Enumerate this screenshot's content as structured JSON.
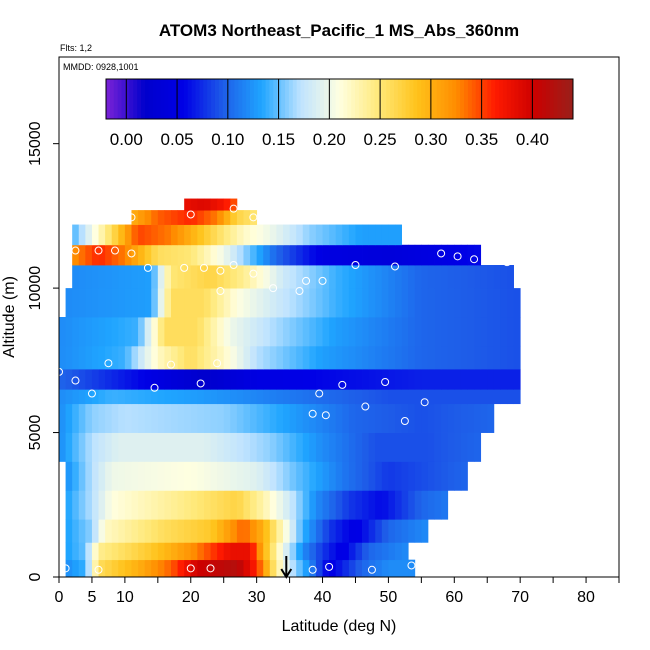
{
  "chart_data": {
    "type": "heatmap",
    "title": "ATOM3 Northeast_Pacific_1 MS_Abs_360nm",
    "flights_note": "Flts: 1,2",
    "date_note": "MMDD: 0928,1001",
    "xlabel": "Latitude (deg N)",
    "ylabel": "Altitude (m)",
    "xlim": [
      0,
      85
    ],
    "ylim": [
      0,
      18000
    ],
    "x_ticks": [
      0,
      5,
      10,
      20,
      30,
      40,
      50,
      60,
      70,
      80
    ],
    "x_tick_labels": [
      "0",
      "5",
      "10",
      "20",
      "30",
      "40",
      "50",
      "60",
      "70",
      "80"
    ],
    "y_ticks": [
      0,
      5000,
      10000,
      15000
    ],
    "y_tick_labels": [
      "0",
      "5000",
      "10000",
      "15000"
    ],
    "colorbar": {
      "range": [
        -0.02,
        0.44
      ],
      "ticks": [
        0.0,
        0.05,
        0.1,
        0.15,
        0.2,
        0.25,
        0.3,
        0.35,
        0.4
      ],
      "tick_labels": [
        "0.00",
        "0.05",
        "0.10",
        "0.15",
        "0.20",
        "0.25",
        "0.30",
        "0.35",
        "0.40"
      ],
      "colors": [
        "#7b22d6",
        "#0000cc",
        "#0000e6",
        "#1e5ce8",
        "#1fa5ff",
        "#bfe3ff",
        "#ffffe0",
        "#ffe97a",
        "#ffc21a",
        "#ff8c00",
        "#ff1a00",
        "#cc0000",
        "#99201a"
      ]
    },
    "grid": false,
    "marker": {
      "x": 34.5,
      "note": "downward arrow at ~34.5 deg N"
    },
    "bands": [
      {
        "alt": [
          0,
          600
        ],
        "lat": [
          1,
          54
        ],
        "nodes": [
          [
            1,
            0.12
          ],
          [
            4,
            0.14
          ],
          [
            6,
            0.26
          ],
          [
            12,
            0.3
          ],
          [
            17,
            0.34
          ],
          [
            21,
            0.4
          ],
          [
            27,
            0.42
          ],
          [
            30,
            0.36
          ],
          [
            33,
            0.24
          ],
          [
            35,
            0.18
          ],
          [
            38,
            0.12
          ],
          [
            41,
            0.05
          ],
          [
            46,
            0.1
          ],
          [
            50,
            0.12
          ],
          [
            54,
            0.12
          ]
        ]
      },
      {
        "alt": [
          600,
          1200
        ],
        "lat": [
          1,
          53
        ],
        "nodes": [
          [
            1,
            0.13
          ],
          [
            4,
            0.15
          ],
          [
            6,
            0.24
          ],
          [
            14,
            0.28
          ],
          [
            20,
            0.32
          ],
          [
            26,
            0.38
          ],
          [
            29,
            0.38
          ],
          [
            31,
            0.3
          ],
          [
            34,
            0.2
          ],
          [
            37,
            0.12
          ],
          [
            40,
            0.08
          ],
          [
            43,
            0.05
          ],
          [
            47,
            0.1
          ],
          [
            53,
            0.12
          ]
        ]
      },
      {
        "alt": [
          1200,
          2000
        ],
        "lat": [
          1,
          56
        ],
        "nodes": [
          [
            1,
            0.13
          ],
          [
            5,
            0.16
          ],
          [
            7,
            0.22
          ],
          [
            16,
            0.26
          ],
          [
            23,
            0.28
          ],
          [
            28,
            0.34
          ],
          [
            31,
            0.3
          ],
          [
            34,
            0.22
          ],
          [
            37,
            0.14
          ],
          [
            41,
            0.08
          ],
          [
            45,
            0.05
          ],
          [
            50,
            0.1
          ],
          [
            56,
            0.12
          ]
        ]
      },
      {
        "alt": [
          2000,
          3000
        ],
        "lat": [
          1,
          59
        ],
        "nodes": [
          [
            1,
            0.13
          ],
          [
            5,
            0.17
          ],
          [
            8,
            0.21
          ],
          [
            18,
            0.24
          ],
          [
            27,
            0.27
          ],
          [
            31,
            0.23
          ],
          [
            35,
            0.18
          ],
          [
            39,
            0.12
          ],
          [
            44,
            0.08
          ],
          [
            49,
            0.06
          ],
          [
            55,
            0.1
          ],
          [
            59,
            0.11
          ]
        ]
      },
      {
        "alt": [
          3000,
          4000
        ],
        "lat": [
          1,
          62
        ],
        "nodes": [
          [
            1,
            0.12
          ],
          [
            5,
            0.17
          ],
          [
            8,
            0.2
          ],
          [
            20,
            0.21
          ],
          [
            30,
            0.19
          ],
          [
            36,
            0.15
          ],
          [
            43,
            0.11
          ],
          [
            50,
            0.08
          ],
          [
            56,
            0.09
          ],
          [
            62,
            0.1
          ]
        ]
      },
      {
        "alt": [
          4000,
          5000
        ],
        "lat": [
          0,
          64
        ],
        "nodes": [
          [
            0,
            0.12
          ],
          [
            5,
            0.17
          ],
          [
            9,
            0.19
          ],
          [
            22,
            0.19
          ],
          [
            32,
            0.16
          ],
          [
            40,
            0.12
          ],
          [
            48,
            0.09
          ],
          [
            56,
            0.09
          ],
          [
            64,
            0.1
          ]
        ]
      },
      {
        "alt": [
          5000,
          6000
        ],
        "lat": [
          0,
          66
        ],
        "nodes": [
          [
            0,
            0.12
          ],
          [
            5,
            0.16
          ],
          [
            10,
            0.17
          ],
          [
            25,
            0.16
          ],
          [
            35,
            0.13
          ],
          [
            45,
            0.1
          ],
          [
            55,
            0.09
          ],
          [
            66,
            0.1
          ]
        ]
      },
      {
        "alt": [
          6000,
          6500
        ],
        "lat": [
          0,
          70
        ],
        "nodes": [
          [
            0,
            0.12
          ],
          [
            8,
            0.14
          ],
          [
            20,
            0.13
          ],
          [
            35,
            0.11
          ],
          [
            50,
            0.09
          ],
          [
            70,
            0.09
          ]
        ]
      },
      {
        "alt": [
          6500,
          7200
        ],
        "lat": [
          0,
          70
        ],
        "nodes": [
          [
            0,
            0.1
          ],
          [
            12,
            0.06
          ],
          [
            22,
            0.02
          ],
          [
            30,
            0.05
          ],
          [
            42,
            0.06
          ],
          [
            55,
            0.07
          ],
          [
            70,
            0.07
          ]
        ]
      },
      {
        "alt": [
          7200,
          8000
        ],
        "lat": [
          0,
          70
        ],
        "nodes": [
          [
            0,
            0.12
          ],
          [
            10,
            0.14
          ],
          [
            15,
            0.22
          ],
          [
            20,
            0.26
          ],
          [
            25,
            0.22
          ],
          [
            30,
            0.17
          ],
          [
            40,
            0.13
          ],
          [
            55,
            0.1
          ],
          [
            70,
            0.09
          ]
        ]
      },
      {
        "alt": [
          8000,
          9000
        ],
        "lat": [
          0,
          70
        ],
        "nodes": [
          [
            0,
            0.12
          ],
          [
            12,
            0.14
          ],
          [
            16,
            0.26
          ],
          [
            21,
            0.26
          ],
          [
            26,
            0.2
          ],
          [
            32,
            0.17
          ],
          [
            42,
            0.13
          ],
          [
            55,
            0.1
          ],
          [
            70,
            0.09
          ]
        ]
      },
      {
        "alt": [
          9000,
          10000
        ],
        "lat": [
          1,
          70
        ],
        "nodes": [
          [
            1,
            0.12
          ],
          [
            14,
            0.13
          ],
          [
            17,
            0.26
          ],
          [
            22,
            0.26
          ],
          [
            27,
            0.21
          ],
          [
            33,
            0.18
          ],
          [
            42,
            0.14
          ],
          [
            55,
            0.1
          ],
          [
            70,
            0.09
          ]
        ]
      },
      {
        "alt": [
          10000,
          10800
        ],
        "lat": [
          2,
          69
        ],
        "nodes": [
          [
            2,
            0.12
          ],
          [
            14,
            0.13
          ],
          [
            17,
            0.25
          ],
          [
            23,
            0.27
          ],
          [
            28,
            0.24
          ],
          [
            34,
            0.18
          ],
          [
            42,
            0.14
          ],
          [
            55,
            0.1
          ],
          [
            69,
            0.09
          ]
        ]
      },
      {
        "alt": [
          10800,
          11500
        ],
        "lat": [
          2,
          64
        ],
        "nodes": [
          [
            2,
            0.32
          ],
          [
            6,
            0.36
          ],
          [
            10,
            0.33
          ],
          [
            15,
            0.26
          ],
          [
            20,
            0.25
          ],
          [
            25,
            0.2
          ],
          [
            33,
            0.1
          ],
          [
            40,
            0.05
          ],
          [
            50,
            0.04
          ],
          [
            64,
            0.06
          ]
        ]
      },
      {
        "alt": [
          11500,
          12200
        ],
        "lat": [
          2,
          52
        ],
        "nodes": [
          [
            2,
            0.14
          ],
          [
            8,
            0.26
          ],
          [
            12,
            0.35
          ],
          [
            17,
            0.33
          ],
          [
            22,
            0.28
          ],
          [
            28,
            0.22
          ],
          [
            32,
            0.2
          ],
          [
            38,
            0.16
          ],
          [
            46,
            0.13
          ],
          [
            52,
            0.13
          ]
        ]
      },
      {
        "alt": [
          12200,
          12700
        ],
        "lat": [
          11,
          30
        ],
        "nodes": [
          [
            11,
            0.3
          ],
          [
            15,
            0.34
          ],
          [
            20,
            0.36
          ],
          [
            24,
            0.33
          ],
          [
            27,
            0.27
          ],
          [
            30,
            0.25
          ]
        ]
      },
      {
        "alt": [
          12700,
          13100
        ],
        "lat": [
          19,
          27
        ],
        "nodes": [
          [
            19,
            0.38
          ],
          [
            22,
            0.39
          ],
          [
            25,
            0.37
          ],
          [
            27,
            0.34
          ]
        ]
      }
    ],
    "sample_points": [
      [
        1,
        300
      ],
      [
        6,
        250
      ],
      [
        20,
        300
      ],
      [
        23,
        300
      ],
      [
        38.5,
        250
      ],
      [
        41,
        350
      ],
      [
        47.5,
        250
      ],
      [
        53.5,
        400
      ],
      [
        0,
        7100
      ],
      [
        2.5,
        6800
      ],
      [
        5,
        6350
      ],
      [
        14.5,
        6550
      ],
      [
        21.5,
        6700
      ],
      [
        39.5,
        6350
      ],
      [
        43,
        6650
      ],
      [
        49.5,
        6750
      ],
      [
        55.5,
        6050
      ],
      [
        71,
        6150
      ],
      [
        38.5,
        5650
      ],
      [
        40.5,
        5600
      ],
      [
        46.5,
        5900
      ],
      [
        52.5,
        5400
      ],
      [
        7.5,
        7400
      ],
      [
        17,
        7350
      ],
      [
        24,
        7400
      ],
      [
        24.5,
        9900
      ],
      [
        29.5,
        10500
      ],
      [
        32.5,
        10000
      ],
      [
        36.5,
        9900
      ],
      [
        37.5,
        10250
      ],
      [
        40,
        10250
      ],
      [
        13.5,
        10700
      ],
      [
        19,
        10700
      ],
      [
        22,
        10700
      ],
      [
        24.5,
        10600
      ],
      [
        26.5,
        10800
      ],
      [
        45,
        10800
      ],
      [
        51,
        10750
      ],
      [
        2.5,
        11300
      ],
      [
        6,
        11300
      ],
      [
        8.5,
        11300
      ],
      [
        11,
        11200
      ],
      [
        58,
        11200
      ],
      [
        60.5,
        11100
      ],
      [
        63,
        11000
      ],
      [
        65,
        10950
      ],
      [
        68,
        10900
      ],
      [
        20,
        12550
      ],
      [
        26.5,
        12750
      ],
      [
        29.5,
        12450
      ],
      [
        11,
        12450
      ]
    ]
  }
}
